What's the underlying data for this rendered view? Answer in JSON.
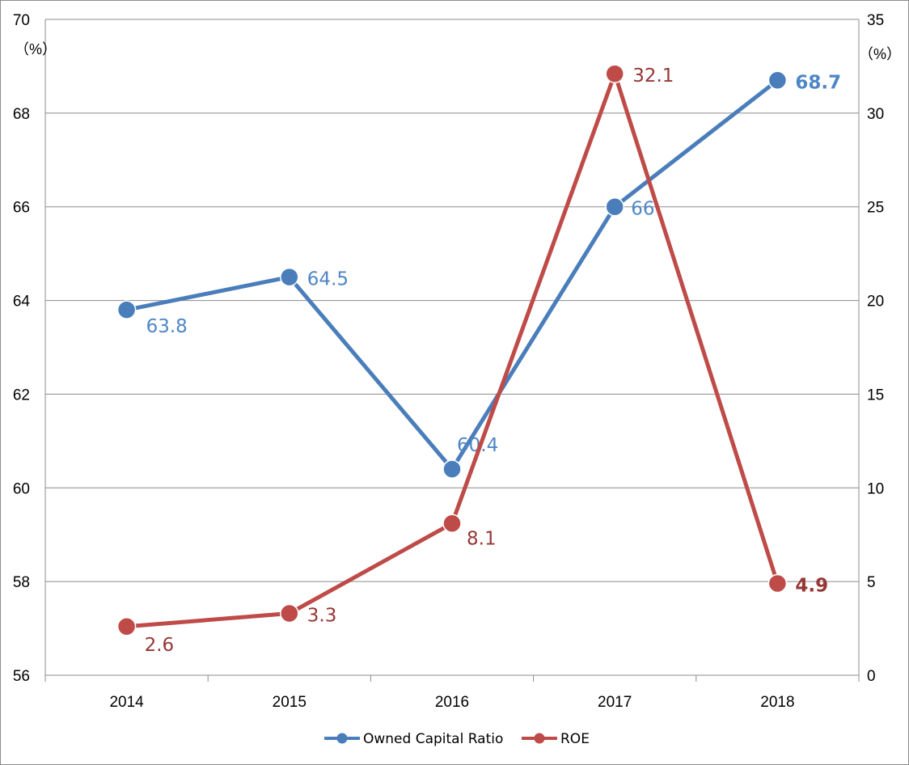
{
  "chart_data": {
    "type": "line",
    "categories": [
      "2014",
      "2015",
      "2016",
      "2017",
      "2018"
    ],
    "series": [
      {
        "name": "Owned Capital Ratio",
        "axis": "left",
        "color": "#4a7ebb",
        "label_color": "#4f86c6",
        "values": [
          63.8,
          64.5,
          60.4,
          66,
          68.7
        ],
        "labels": [
          "63.8",
          "64.5",
          "60.4",
          "66",
          "68.7"
        ],
        "bold_last_label": true
      },
      {
        "name": "ROE",
        "axis": "right",
        "color": "#be4b48",
        "label_color": "#953735",
        "values": [
          2.6,
          3.3,
          8.1,
          32.1,
          4.9
        ],
        "labels": [
          "2.6",
          "3.3",
          "8.1",
          "32.1",
          "4.9"
        ],
        "bold_last_label": true
      }
    ],
    "y_left": {
      "min": 56,
      "max": 70,
      "step": 2,
      "unit": "（%）"
    },
    "y_right": {
      "min": 0,
      "max": 35,
      "step": 5,
      "unit": "（%）"
    },
    "grid": true,
    "legend_position": "bottom"
  }
}
